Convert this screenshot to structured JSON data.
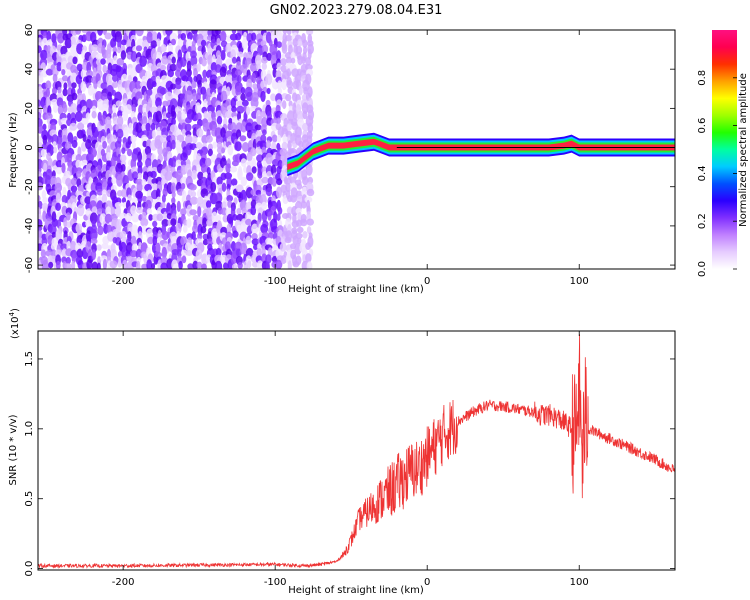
{
  "figure": {
    "title": "GN02.2023.279.08.04.E31"
  },
  "colorbar": {
    "label": "Normalized spectral amplitude",
    "ticks": [
      "0.0",
      "0.2",
      "0.4",
      "0.6",
      "0.8"
    ],
    "tick_values": [
      0.0,
      0.2,
      0.4,
      0.6,
      0.8
    ],
    "range": [
      0,
      1
    ],
    "stops": [
      "#ffffff",
      "#e6ccff",
      "#c080ff",
      "#8030ff",
      "#2a00ff",
      "#0050ff",
      "#00ccff",
      "#00ffa0",
      "#22ff00",
      "#a0ff00",
      "#ffff00",
      "#ffa000",
      "#ff3000",
      "#ff0050",
      "#ff1080"
    ]
  },
  "chart_data": [
    {
      "type": "heatmap",
      "title": "",
      "xlabel": "Height of straight line (km)",
      "ylabel": "Frequency (Hz)",
      "xlim": [
        -256,
        163
      ],
      "ylim": [
        -62,
        60
      ],
      "xticks": [
        -200,
        -100,
        0,
        100
      ],
      "xtick_labels": [
        "-200",
        "-100",
        "0",
        "100"
      ],
      "yticks": [
        60,
        40,
        20,
        0,
        -20,
        -40,
        -60
      ],
      "ytick_labels": [
        "60",
        "40",
        "20",
        "0",
        "-20",
        "-40",
        "-60"
      ],
      "noise_region_x": [
        -256,
        -78
      ],
      "signal_ridge": {
        "x": [
          -92,
          -85,
          -75,
          -65,
          -55,
          -45,
          -35,
          -25,
          -15,
          0,
          20,
          40,
          60,
          80,
          90,
          95,
          100,
          120,
          140,
          163
        ],
        "frequency": [
          -10,
          -8,
          -2,
          1,
          1,
          2,
          3,
          0,
          0,
          0,
          0,
          0,
          0,
          0,
          1,
          2,
          0,
          0,
          0,
          0
        ]
      },
      "color_scale": "Normalized spectral amplitude"
    },
    {
      "type": "line",
      "title": "",
      "xlabel": "Height of straight line (km)",
      "ylabel": "SNR (10 * v/v)",
      "y_multiplier": "(x10",
      "y_multiplier_exp": "4",
      "y_multiplier_close": ")",
      "xlim": [
        -256,
        163
      ],
      "ylim": [
        -0.01,
        1.7
      ],
      "xticks": [
        -200,
        -100,
        0,
        100
      ],
      "xtick_labels": [
        "-200",
        "-100",
        "0",
        "100"
      ],
      "yticks": [
        0,
        0.5,
        1.0,
        1.5
      ],
      "ytick_labels": [
        "0.0",
        "0.5",
        "1.0",
        "1.5"
      ],
      "color": "#ee3333",
      "series": [
        {
          "x": [
            -256,
            -200,
            -150,
            -100,
            -80,
            -70,
            -60,
            -55,
            -50,
            -45,
            -40,
            -35,
            -30,
            -25,
            -20,
            -15,
            -10,
            -5,
            0,
            10,
            20,
            30,
            40,
            50,
            60,
            70,
            75,
            80,
            85,
            90,
            95,
            98,
            100,
            102,
            104,
            106,
            110,
            120,
            130,
            140,
            150,
            163
          ],
          "y": [
            0.02,
            0.02,
            0.025,
            0.03,
            0.02,
            0.03,
            0.05,
            0.1,
            0.2,
            0.35,
            0.4,
            0.45,
            0.5,
            0.55,
            0.6,
            0.65,
            0.7,
            0.72,
            0.8,
            0.95,
            1.05,
            1.12,
            1.17,
            1.16,
            1.14,
            1.12,
            1.1,
            1.1,
            1.08,
            1.05,
            1.0,
            0.95,
            1.3,
            0.8,
            1.1,
            1.0,
            0.98,
            0.93,
            0.88,
            0.83,
            0.78,
            0.7
          ]
        }
      ]
    }
  ]
}
